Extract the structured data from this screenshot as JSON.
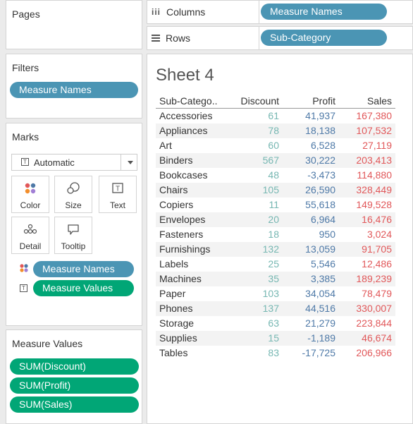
{
  "pages": {
    "title": "Pages"
  },
  "filters": {
    "title": "Filters",
    "pills": [
      "Measure Names"
    ]
  },
  "marks": {
    "title": "Marks",
    "mark_type": "Automatic",
    "buttons": [
      "Color",
      "Size",
      "Text",
      "Detail",
      "Tooltip"
    ],
    "fields": [
      {
        "label": "Measure Names",
        "icon": "color-icon"
      },
      {
        "label": "Measure Values",
        "icon": "text-icon"
      }
    ]
  },
  "measure_values": {
    "title": "Measure Values",
    "pills": [
      "SUM(Discount)",
      "SUM(Profit)",
      "SUM(Sales)"
    ]
  },
  "shelves": {
    "columns": {
      "label": "Columns",
      "pill": "Measure Names"
    },
    "rows": {
      "label": "Rows",
      "pill": "Sub-Category"
    }
  },
  "sheet": {
    "title": "Sheet 4",
    "headers": [
      "Sub-Catego..",
      "Discount",
      "Profit",
      "Sales"
    ],
    "rows": [
      {
        "name": "Accessories",
        "discount": "61",
        "profit": "41,937",
        "sales": "167,380"
      },
      {
        "name": "Appliances",
        "discount": "78",
        "profit": "18,138",
        "sales": "107,532"
      },
      {
        "name": "Art",
        "discount": "60",
        "profit": "6,528",
        "sales": "27,119"
      },
      {
        "name": "Binders",
        "discount": "567",
        "profit": "30,222",
        "sales": "203,413"
      },
      {
        "name": "Bookcases",
        "discount": "48",
        "profit": "-3,473",
        "sales": "114,880"
      },
      {
        "name": "Chairs",
        "discount": "105",
        "profit": "26,590",
        "sales": "328,449"
      },
      {
        "name": "Copiers",
        "discount": "11",
        "profit": "55,618",
        "sales": "149,528"
      },
      {
        "name": "Envelopes",
        "discount": "20",
        "profit": "6,964",
        "sales": "16,476"
      },
      {
        "name": "Fasteners",
        "discount": "18",
        "profit": "950",
        "sales": "3,024"
      },
      {
        "name": "Furnishings",
        "discount": "132",
        "profit": "13,059",
        "sales": "91,705"
      },
      {
        "name": "Labels",
        "discount": "25",
        "profit": "5,546",
        "sales": "12,486"
      },
      {
        "name": "Machines",
        "discount": "35",
        "profit": "3,385",
        "sales": "189,239"
      },
      {
        "name": "Paper",
        "discount": "103",
        "profit": "34,054",
        "sales": "78,479"
      },
      {
        "name": "Phones",
        "discount": "137",
        "profit": "44,516",
        "sales": "330,007"
      },
      {
        "name": "Storage",
        "discount": "63",
        "profit": "21,279",
        "sales": "223,844"
      },
      {
        "name": "Supplies",
        "discount": "15",
        "profit": "-1,189",
        "sales": "46,674"
      },
      {
        "name": "Tables",
        "discount": "83",
        "profit": "-17,725",
        "sales": "206,966"
      }
    ]
  },
  "colors": {
    "discount": "#76b7b2",
    "profit": "#4e79a7",
    "sales": "#e15759",
    "pill_blue": "#4b95b4",
    "pill_green": "#01a676"
  }
}
